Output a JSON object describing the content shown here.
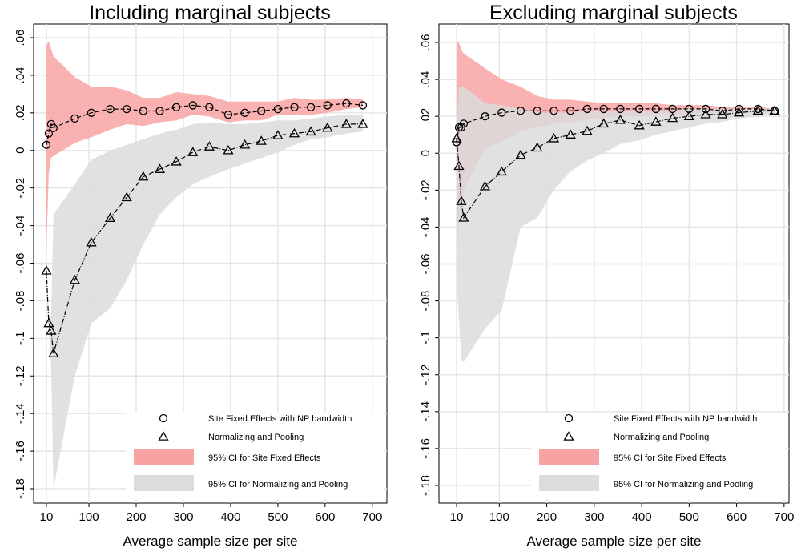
{
  "chart_data": [
    {
      "type": "line",
      "title": "Including marginal subjects",
      "xlabel": "Average sample size per site",
      "ylabel": "",
      "xlim": [
        0,
        720
      ],
      "ylim": [
        -0.19,
        0.065
      ],
      "x_ticks": [
        10,
        100,
        200,
        300,
        400,
        500,
        600,
        700
      ],
      "x_tick_labels": [
        "10",
        "100",
        "200",
        "300",
        "400",
        "500",
        "600",
        "700"
      ],
      "y_ticks": [
        0.06,
        0.04,
        0.02,
        0,
        -0.02,
        -0.04,
        -0.06,
        -0.08,
        -0.1,
        -0.12,
        -0.14,
        -0.16,
        -0.18
      ],
      "y_tick_labels": [
        ".06",
        ".04",
        ".02",
        "0",
        "-.02",
        "-.04",
        "-.06",
        "-.08",
        "-.1",
        "-.12",
        "-.14",
        "-.16",
        "-.18"
      ],
      "grid": true,
      "legend_position": "bottom-right",
      "series": [
        {
          "name": "Site Fixed Effects with NP bandwidth",
          "marker": "circle",
          "x": [
            10,
            15,
            20,
            25,
            70,
            105,
            145,
            180,
            215,
            250,
            285,
            320,
            355,
            395,
            430,
            465,
            500,
            535,
            570,
            605,
            645,
            680
          ],
          "y": [
            0.003,
            0.009,
            0.014,
            0.012,
            0.017,
            0.02,
            0.022,
            0.022,
            0.021,
            0.021,
            0.023,
            0.024,
            0.023,
            0.019,
            0.02,
            0.021,
            0.022,
            0.023,
            0.023,
            0.024,
            0.025,
            0.024
          ]
        },
        {
          "name": "Normalizing and Pooling",
          "marker": "triangle",
          "x": [
            10,
            15,
            20,
            25,
            70,
            105,
            145,
            180,
            215,
            250,
            285,
            320,
            355,
            395,
            430,
            465,
            500,
            535,
            570,
            605,
            645,
            680
          ],
          "y": [
            -0.064,
            -0.092,
            -0.096,
            -0.108,
            -0.069,
            -0.049,
            -0.036,
            -0.025,
            -0.014,
            -0.01,
            -0.006,
            -0.001,
            0.002,
            0.0,
            0.003,
            0.005,
            0.008,
            0.009,
            0.01,
            0.012,
            0.014,
            0.014
          ]
        }
      ],
      "ci_bands": [
        {
          "name": "95% CI for Site Fixed Effects",
          "color": "#f8a3a3",
          "x": [
            10,
            15,
            20,
            25,
            70,
            105,
            145,
            180,
            215,
            250,
            285,
            320,
            355,
            395,
            430,
            465,
            500,
            535,
            570,
            605,
            645,
            680
          ],
          "lower": [
            -0.052,
            -0.012,
            -0.004,
            -0.003,
            0.004,
            0.007,
            0.011,
            0.014,
            0.013,
            0.015,
            0.016,
            0.019,
            0.018,
            0.015,
            0.016,
            0.016,
            0.019,
            0.019,
            0.019,
            0.02,
            0.022,
            0.023
          ],
          "upper": [
            0.056,
            0.058,
            0.054,
            0.05,
            0.039,
            0.034,
            0.034,
            0.032,
            0.028,
            0.028,
            0.031,
            0.03,
            0.029,
            0.026,
            0.026,
            0.026,
            0.026,
            0.028,
            0.027,
            0.027,
            0.028,
            0.027
          ]
        },
        {
          "name": "95% CI for Normalizing and Pooling",
          "color": "#dcdcdc",
          "x": [
            10,
            15,
            20,
            25,
            70,
            105,
            145,
            180,
            215,
            250,
            285,
            320,
            355,
            395,
            430,
            465,
            500,
            535,
            570,
            605,
            645,
            680
          ],
          "lower": [
            -0.068,
            -0.095,
            -0.115,
            -0.18,
            -0.12,
            -0.092,
            -0.084,
            -0.069,
            -0.05,
            -0.034,
            -0.025,
            -0.018,
            -0.014,
            -0.01,
            -0.007,
            -0.004,
            -0.001,
            0.003,
            0.006,
            0.007,
            0.009,
            0.01
          ],
          "upper": [
            -0.061,
            -0.088,
            -0.088,
            -0.034,
            -0.018,
            -0.005,
            0.0,
            0.003,
            0.006,
            0.009,
            0.011,
            0.014,
            0.015,
            0.014,
            0.014,
            0.015,
            0.016,
            0.016,
            0.017,
            0.018,
            0.019,
            0.019
          ]
        }
      ]
    },
    {
      "type": "line",
      "title": "Excluding marginal subjects",
      "xlabel": "Average sample size per site",
      "ylabel": "",
      "xlim": [
        0,
        720
      ],
      "ylim": [
        -0.19,
        0.065
      ],
      "x_ticks": [
        10,
        100,
        200,
        300,
        400,
        500,
        600,
        700
      ],
      "x_tick_labels": [
        "10",
        "100",
        "200",
        "300",
        "400",
        "500",
        "600",
        "700"
      ],
      "y_ticks": [
        0.06,
        0.04,
        0.02,
        0,
        -0.02,
        -0.04,
        -0.06,
        -0.08,
        -0.1,
        -0.12,
        -0.14,
        -0.16,
        -0.18
      ],
      "y_tick_labels": [
        ".06",
        ".04",
        ".02",
        "0",
        "-.02",
        "-.04",
        "-.06",
        "-.08",
        "-.1",
        "-.12",
        "-.14",
        "-.16",
        "-.18"
      ],
      "grid": true,
      "legend_position": "bottom-right",
      "series": [
        {
          "name": "Site Fixed Effects with NP bandwidth",
          "marker": "circle",
          "x": [
            10,
            15,
            20,
            25,
            70,
            105,
            145,
            180,
            215,
            250,
            285,
            320,
            355,
            395,
            430,
            465,
            500,
            535,
            570,
            605,
            645,
            680
          ],
          "y": [
            0.006,
            0.014,
            0.014,
            0.016,
            0.02,
            0.022,
            0.023,
            0.023,
            0.023,
            0.023,
            0.024,
            0.024,
            0.024,
            0.024,
            0.024,
            0.024,
            0.024,
            0.024,
            0.023,
            0.024,
            0.024,
            0.023
          ]
        },
        {
          "name": "Normalizing and Pooling",
          "marker": "triangle",
          "x": [
            10,
            15,
            20,
            25,
            70,
            105,
            145,
            180,
            215,
            250,
            285,
            320,
            355,
            395,
            430,
            465,
            500,
            535,
            570,
            605,
            645,
            680
          ],
          "y": [
            0.008,
            -0.007,
            -0.026,
            -0.035,
            -0.018,
            -0.01,
            -0.001,
            0.003,
            0.008,
            0.01,
            0.012,
            0.016,
            0.018,
            0.015,
            0.017,
            0.019,
            0.02,
            0.021,
            0.021,
            0.022,
            0.023,
            0.023
          ]
        }
      ],
      "ci_bands": [
        {
          "name": "95% CI for Site Fixed Effects",
          "color": "#f8a3a3",
          "x": [
            10,
            15,
            20,
            25,
            70,
            105,
            145,
            180,
            215,
            250,
            285,
            320,
            355,
            395,
            430,
            465,
            500,
            535,
            570,
            605,
            645,
            680
          ],
          "lower": [
            -0.055,
            -0.036,
            -0.03,
            -0.02,
            0.003,
            0.006,
            0.012,
            0.014,
            0.016,
            0.017,
            0.018,
            0.019,
            0.02,
            0.02,
            0.021,
            0.021,
            0.021,
            0.022,
            0.021,
            0.022,
            0.022,
            0.022
          ],
          "upper": [
            0.061,
            0.06,
            0.056,
            0.054,
            0.046,
            0.04,
            0.036,
            0.031,
            0.029,
            0.029,
            0.028,
            0.027,
            0.027,
            0.027,
            0.027,
            0.026,
            0.026,
            0.026,
            0.025,
            0.025,
            0.025,
            0.024
          ]
        },
        {
          "name": "95% CI for Normalizing and Pooling",
          "color": "#dcdcdc",
          "x": [
            10,
            15,
            20,
            25,
            70,
            105,
            145,
            180,
            215,
            250,
            285,
            320,
            355,
            395,
            430,
            465,
            500,
            535,
            570,
            605,
            645,
            680
          ],
          "lower": [
            -0.07,
            -0.09,
            -0.112,
            -0.113,
            -0.095,
            -0.085,
            -0.04,
            -0.035,
            -0.02,
            -0.01,
            -0.004,
            0.0,
            0.005,
            0.007,
            0.01,
            0.012,
            0.014,
            0.016,
            0.017,
            0.019,
            0.02,
            0.021
          ],
          "upper": [
            0.01,
            0.036,
            0.036,
            0.036,
            0.027,
            0.026,
            0.024,
            0.022,
            0.022,
            0.022,
            0.023,
            0.023,
            0.023,
            0.023,
            0.023,
            0.023,
            0.024,
            0.024,
            0.024,
            0.024,
            0.024,
            0.024
          ]
        }
      ]
    }
  ]
}
